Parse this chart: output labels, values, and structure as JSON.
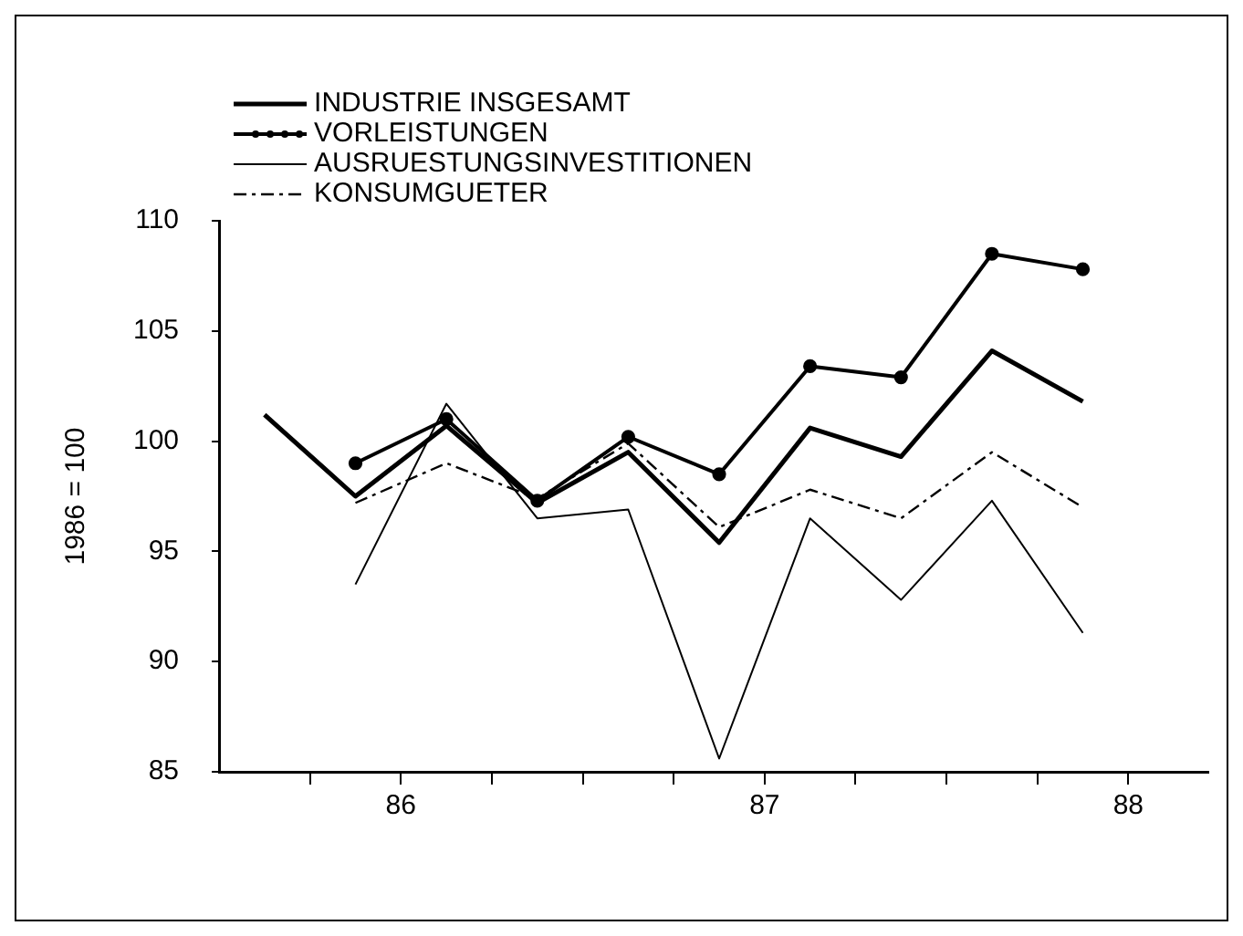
{
  "chart_data": {
    "type": "line",
    "ylabel": "1986 = 100",
    "x": [
      85.625,
      85.875,
      86.125,
      86.375,
      86.625,
      86.875,
      87.125,
      87.375,
      87.625,
      87.875
    ],
    "xlim": [
      85.5,
      88.22
    ],
    "xticks": [
      {
        "value": 85.75,
        "label": null
      },
      {
        "value": 86,
        "label": "86"
      },
      {
        "value": 86.25,
        "label": null
      },
      {
        "value": 86.5,
        "label": null
      },
      {
        "value": 86.75,
        "label": null
      },
      {
        "value": 87,
        "label": "87"
      },
      {
        "value": 87.25,
        "label": null
      },
      {
        "value": 87.5,
        "label": null
      },
      {
        "value": 87.75,
        "label": null
      },
      {
        "value": 88,
        "label": "88"
      }
    ],
    "ylim": [
      85,
      110
    ],
    "yticks": [
      85,
      90,
      95,
      100,
      105,
      110
    ],
    "grid": false,
    "legend": "top left",
    "series": [
      {
        "name": "INDUSTRIE INSGESAMT",
        "color": "#000000",
        "marker": "none",
        "line_style": "solid",
        "values": [
          101.2,
          97.5,
          100.7,
          97.2,
          99.5,
          95.4,
          100.6,
          99.3,
          104.1,
          101.8
        ]
      },
      {
        "name": "VORLEISTUNGEN",
        "color": "#000000",
        "marker": "circle",
        "line_style": "solid",
        "values": [
          null,
          99.0,
          101.0,
          97.3,
          100.2,
          98.5,
          103.4,
          102.9,
          108.5,
          107.8
        ]
      },
      {
        "name": "AUSRUESTUNGSINVESTITIONEN",
        "color": "#000000",
        "marker": "none",
        "line_style": "solid",
        "values": [
          null,
          93.5,
          101.7,
          96.5,
          96.9,
          85.6,
          96.5,
          92.8,
          97.3,
          91.3
        ]
      },
      {
        "name": "KONSUMGUETER",
        "color": "#000000",
        "marker": "none",
        "line_style": "dashed",
        "values": [
          null,
          97.2,
          99.0,
          97.4,
          99.9,
          96.1,
          97.8,
          96.5,
          99.5,
          97.0
        ]
      }
    ]
  }
}
